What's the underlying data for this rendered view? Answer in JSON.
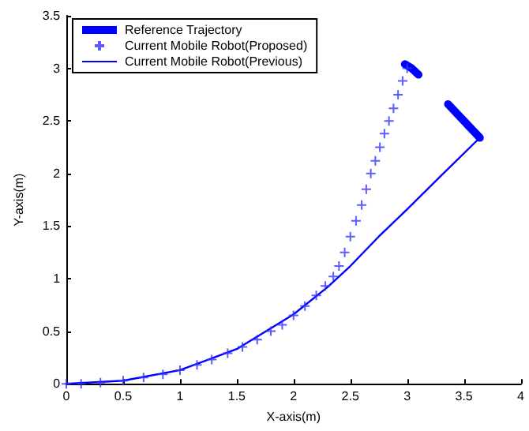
{
  "chart_data": {
    "type": "line",
    "xlabel": "X-axis(m)",
    "ylabel": "Y-axis(m)",
    "xlim": [
      0,
      4
    ],
    "xticks": [
      0,
      0.5,
      1,
      1.5,
      2,
      2.5,
      3,
      3.5,
      4
    ],
    "ylim": [
      0,
      3.5
    ],
    "yticks": [
      0,
      0.5,
      1,
      1.5,
      2,
      2.5,
      3,
      3.5
    ],
    "grid": false,
    "legend": "top left",
    "series": [
      {
        "name": "Reference Trajectory",
        "color": "#0000ff",
        "marker": "none",
        "line_style": "solid",
        "x": [
          3.36,
          3.5,
          3.64
        ],
        "values": [
          2.66,
          2.5,
          2.34
        ]
      },
      {
        "name": "Current Mobile Robot(Proposed)",
        "type": "scatter",
        "color": "#3333ff",
        "marker": "cross",
        "x": [
          0,
          0.13,
          0.3,
          0.5,
          0.68,
          0.85,
          1.0,
          1.15,
          1.28,
          1.42,
          1.55,
          1.68,
          1.8,
          1.9,
          2.0,
          2.1,
          2.2,
          2.28,
          2.35,
          2.4,
          2.45,
          2.5,
          2.55,
          2.6,
          2.64,
          2.68,
          2.72,
          2.76,
          2.8,
          2.84,
          2.88,
          2.92,
          2.96,
          3.0
        ],
        "values": [
          0,
          0,
          0.01,
          0.03,
          0.06,
          0.09,
          0.13,
          0.18,
          0.23,
          0.29,
          0.35,
          0.42,
          0.5,
          0.56,
          0.65,
          0.74,
          0.84,
          0.93,
          1.02,
          1.12,
          1.25,
          1.4,
          1.55,
          1.7,
          1.85,
          2.0,
          2.12,
          2.25,
          2.38,
          2.5,
          2.62,
          2.75,
          2.88,
          3.0
        ]
      },
      {
        "name": "Current Mobile Robot(Previous)",
        "color": "#0000ff",
        "marker": "none",
        "line_style": "solid",
        "x": [
          0,
          0.5,
          1,
          1.5,
          2,
          2.3,
          2.5,
          2.75,
          3,
          3.3,
          3.64
        ],
        "values": [
          0,
          0.03,
          0.13,
          0.33,
          0.66,
          0.92,
          1.12,
          1.4,
          1.66,
          1.98,
          2.34
        ]
      },
      {
        "color": "#0000ff",
        "marker": "none",
        "line_style": "solid",
        "x": [
          2.98,
          3.04,
          3.1
        ],
        "values": [
          3.04,
          3.0,
          2.94
        ]
      }
    ]
  }
}
